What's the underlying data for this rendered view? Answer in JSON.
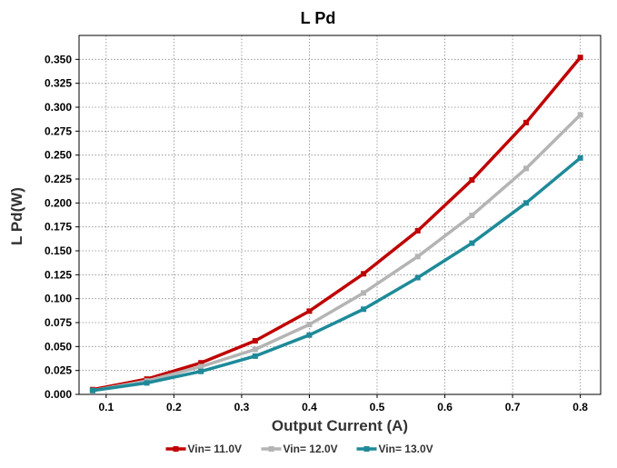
{
  "chart_data": {
    "type": "line",
    "title": "L Pd",
    "xlabel": "Output Current (A)",
    "ylabel": "L Pd(W)",
    "xlim": [
      0.06,
      0.83
    ],
    "ylim": [
      0.0,
      0.375
    ],
    "xticks": [
      0.1,
      0.2,
      0.3,
      0.4,
      0.5,
      0.6,
      0.7,
      0.8
    ],
    "xtick_labels": [
      "0.1",
      "0.2",
      "0.3",
      "0.4",
      "0.5",
      "0.6",
      "0.7",
      "0.8"
    ],
    "yticks": [
      0.0,
      0.025,
      0.05,
      0.075,
      0.1,
      0.125,
      0.15,
      0.175,
      0.2,
      0.225,
      0.25,
      0.275,
      0.3,
      0.325,
      0.35
    ],
    "ytick_labels": [
      "0.000",
      "0.025",
      "0.050",
      "0.075",
      "0.100",
      "0.125",
      "0.150",
      "0.175",
      "0.200",
      "0.225",
      "0.250",
      "0.275",
      "0.300",
      "0.325",
      "0.350"
    ],
    "grid": true,
    "legend": "bottom",
    "x": [
      0.08,
      0.16,
      0.24,
      0.32,
      0.4,
      0.48,
      0.56,
      0.64,
      0.72,
      0.8
    ],
    "series": [
      {
        "name": "Vin= 11.0V",
        "color": "#c00000",
        "values": [
          0.005,
          0.016,
          0.033,
          0.056,
          0.087,
          0.126,
          0.171,
          0.224,
          0.284,
          0.352
        ]
      },
      {
        "name": "Vin= 12.0V",
        "color": "#b4b4b4",
        "values": [
          0.004,
          0.014,
          0.029,
          0.047,
          0.073,
          0.106,
          0.144,
          0.187,
          0.236,
          0.292
        ]
      },
      {
        "name": "Vin= 13.0V",
        "color": "#1e8a99",
        "values": [
          0.004,
          0.012,
          0.024,
          0.04,
          0.062,
          0.089,
          0.122,
          0.158,
          0.2,
          0.247
        ]
      }
    ]
  }
}
